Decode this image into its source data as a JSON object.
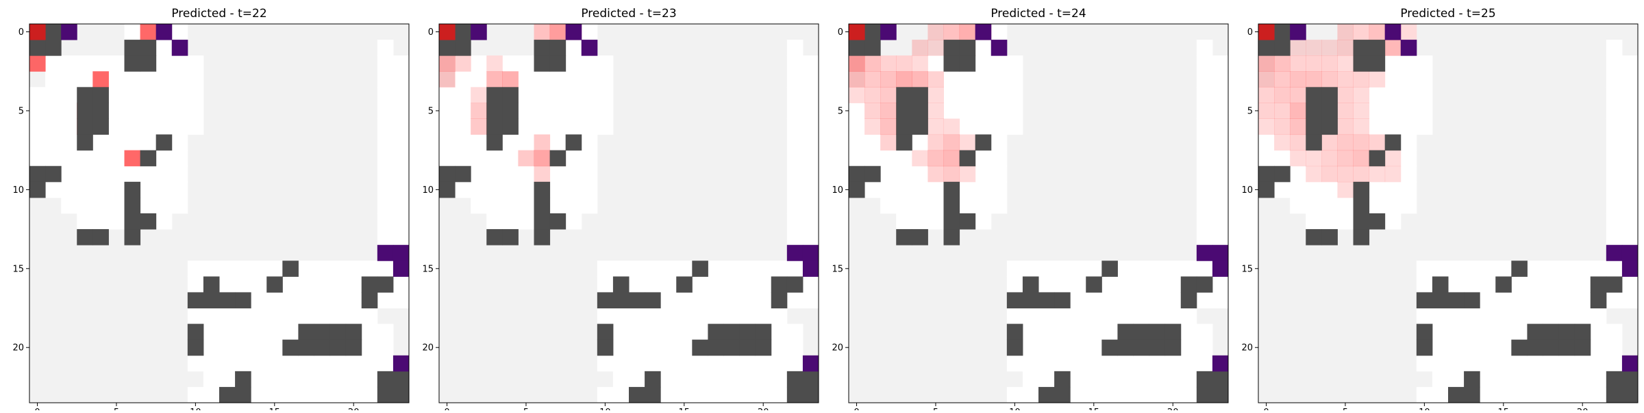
{
  "chart_data": [
    {
      "type": "heatmap",
      "title": "Predicted - t=22",
      "xticks": [
        0,
        5,
        10,
        15,
        20
      ],
      "yticks": [
        0,
        5,
        10,
        15,
        20
      ],
      "grid_size": [
        24,
        24
      ],
      "xlim": [
        -0.5,
        23.5
      ],
      "ylim": [
        23.5,
        -0.5
      ],
      "grid": false
    },
    {
      "type": "heatmap",
      "title": "Predicted - t=23",
      "xticks": [
        0,
        5,
        10,
        15,
        20
      ],
      "yticks": [
        0,
        5,
        10,
        15,
        20
      ],
      "grid_size": [
        24,
        24
      ],
      "xlim": [
        -0.5,
        23.5
      ],
      "ylim": [
        23.5,
        -0.5
      ],
      "grid": false
    },
    {
      "type": "heatmap",
      "title": "Predicted - t=24",
      "xticks": [
        0,
        5,
        10,
        15,
        20
      ],
      "yticks": [
        0,
        5,
        10,
        15,
        20
      ],
      "grid_size": [
        24,
        24
      ],
      "xlim": [
        -0.5,
        23.5
      ],
      "ylim": [
        23.5,
        -0.5
      ],
      "grid": false
    },
    {
      "type": "heatmap",
      "title": "Predicted - t=25",
      "xticks": [
        0,
        5,
        10,
        15,
        20
      ],
      "yticks": [
        0,
        5,
        10,
        15,
        20
      ],
      "grid_size": [
        24,
        24
      ],
      "xlim": [
        -0.5,
        23.5
      ],
      "ylim": [
        23.5,
        -0.5
      ],
      "grid": false
    }
  ],
  "colors": {
    "background": "#f2f2f2",
    "open": "#ffffff",
    "wall": "#4d4d4d",
    "goal": "#4b0a73",
    "agent": "#cc1f1f",
    "prediction": "#ff4d4d"
  },
  "maps": {
    "base": {
      "open": [
        [
          0,
          6,
          9
        ],
        [
          1,
          6,
          8
        ],
        [
          2,
          1,
          10
        ],
        [
          3,
          1,
          10
        ],
        [
          4,
          0,
          10
        ],
        [
          5,
          0,
          10
        ],
        [
          6,
          0,
          10
        ],
        [
          7,
          0,
          9
        ],
        [
          8,
          0,
          9
        ],
        [
          9,
          0,
          9
        ],
        [
          10,
          0,
          9
        ],
        [
          11,
          2,
          9
        ],
        [
          12,
          3,
          8
        ],
        [
          15,
          10,
          23
        ],
        [
          16,
          10,
          23
        ],
        [
          17,
          10,
          23
        ],
        [
          18,
          10,
          21
        ],
        [
          19,
          11,
          22
        ],
        [
          20,
          11,
          22
        ],
        [
          21,
          10,
          22
        ],
        [
          22,
          11,
          22
        ],
        [
          23,
          10,
          22
        ],
        [
          1,
          22,
          22
        ],
        [
          2,
          22,
          23
        ],
        [
          3,
          22,
          23
        ],
        [
          4,
          22,
          23
        ],
        [
          5,
          22,
          23
        ],
        [
          6,
          22,
          23
        ],
        [
          7,
          22,
          23
        ],
        [
          8,
          22,
          23
        ],
        [
          9,
          22,
          23
        ],
        [
          10,
          22,
          23
        ],
        [
          11,
          22,
          23
        ],
        [
          12,
          22,
          23
        ],
        [
          13,
          22,
          23
        ]
      ],
      "walls": [
        [
          0,
          1
        ],
        [
          1,
          0
        ],
        [
          1,
          1
        ],
        [
          2,
          6
        ],
        [
          2,
          7
        ],
        [
          1,
          6
        ],
        [
          1,
          7
        ],
        [
          4,
          3
        ],
        [
          4,
          4
        ],
        [
          5,
          3
        ],
        [
          5,
          4
        ],
        [
          6,
          3
        ],
        [
          6,
          4
        ],
        [
          7,
          3
        ],
        [
          7,
          8
        ],
        [
          8,
          7
        ],
        [
          9,
          0
        ],
        [
          9,
          1
        ],
        [
          10,
          0
        ],
        [
          10,
          6
        ],
        [
          11,
          6
        ],
        [
          12,
          6
        ],
        [
          12,
          7
        ],
        [
          13,
          3
        ],
        [
          13,
          4
        ],
        [
          13,
          6
        ],
        [
          15,
          16
        ],
        [
          16,
          11
        ],
        [
          16,
          15
        ],
        [
          16,
          21
        ],
        [
          16,
          22
        ],
        [
          17,
          10
        ],
        [
          17,
          11
        ],
        [
          17,
          12
        ],
        [
          17,
          13
        ],
        [
          17,
          21
        ],
        [
          19,
          10
        ],
        [
          19,
          17
        ],
        [
          19,
          18
        ],
        [
          19,
          19
        ],
        [
          19,
          20
        ],
        [
          20,
          10
        ],
        [
          20,
          16
        ],
        [
          20,
          17
        ],
        [
          20,
          18
        ],
        [
          20,
          19
        ],
        [
          20,
          20
        ],
        [
          22,
          13
        ],
        [
          23,
          13
        ],
        [
          23,
          12
        ],
        [
          22,
          22
        ],
        [
          22,
          23
        ],
        [
          23,
          22
        ],
        [
          23,
          23
        ]
      ],
      "goals": [
        [
          0,
          2
        ],
        [
          0,
          8
        ],
        [
          1,
          9
        ],
        [
          14,
          22
        ],
        [
          14,
          23
        ],
        [
          15,
          23
        ],
        [
          21,
          23
        ]
      ],
      "agent": [
        [
          0,
          0
        ]
      ]
    },
    "predictions": [
      [
        [
          2,
          0,
          0.85
        ],
        [
          3,
          4,
          0.85
        ],
        [
          5,
          3,
          1.0
        ],
        [
          6,
          3,
          1.0
        ],
        [
          8,
          6,
          0.85
        ],
        [
          0,
          7,
          0.85
        ]
      ],
      [
        [
          0,
          6,
          0.35
        ],
        [
          0,
          7,
          0.55
        ],
        [
          0,
          8,
          0.45
        ],
        [
          2,
          0,
          0.45
        ],
        [
          2,
          1,
          0.25
        ],
        [
          3,
          0,
          0.3
        ],
        [
          3,
          3,
          0.4
        ],
        [
          3,
          4,
          0.45
        ],
        [
          4,
          2,
          0.2
        ],
        [
          5,
          2,
          0.3
        ],
        [
          5,
          3,
          0.85
        ],
        [
          6,
          2,
          0.3
        ],
        [
          6,
          3,
          0.85
        ],
        [
          7,
          6,
          0.3
        ],
        [
          8,
          5,
          0.3
        ],
        [
          8,
          6,
          0.5
        ],
        [
          8,
          7,
          0.25
        ],
        [
          9,
          6,
          0.25
        ],
        [
          2,
          3,
          0.2
        ],
        [
          4,
          4,
          0.1
        ]
      ],
      [
        [
          0,
          5,
          0.25
        ],
        [
          0,
          6,
          0.35
        ],
        [
          0,
          7,
          0.45
        ],
        [
          0,
          8,
          0.45
        ],
        [
          1,
          4,
          0.25
        ],
        [
          1,
          5,
          0.2
        ],
        [
          1,
          7,
          0.25
        ],
        [
          2,
          0,
          0.55
        ],
        [
          2,
          1,
          0.35
        ],
        [
          2,
          2,
          0.25
        ],
        [
          2,
          3,
          0.25
        ],
        [
          2,
          4,
          0.2
        ],
        [
          3,
          0,
          0.35
        ],
        [
          3,
          1,
          0.3
        ],
        [
          3,
          2,
          0.35
        ],
        [
          3,
          3,
          0.45
        ],
        [
          3,
          4,
          0.4
        ],
        [
          3,
          5,
          0.25
        ],
        [
          4,
          0,
          0.2
        ],
        [
          4,
          1,
          0.25
        ],
        [
          4,
          2,
          0.3
        ],
        [
          4,
          5,
          0.2
        ],
        [
          5,
          1,
          0.25
        ],
        [
          5,
          2,
          0.35
        ],
        [
          5,
          3,
          0.75
        ],
        [
          5,
          5,
          0.2
        ],
        [
          6,
          1,
          0.2
        ],
        [
          6,
          2,
          0.35
        ],
        [
          6,
          3,
          0.75
        ],
        [
          6,
          5,
          0.2
        ],
        [
          6,
          6,
          0.2
        ],
        [
          7,
          2,
          0.25
        ],
        [
          7,
          5,
          0.25
        ],
        [
          7,
          6,
          0.35
        ],
        [
          7,
          7,
          0.2
        ],
        [
          8,
          4,
          0.2
        ],
        [
          8,
          5,
          0.35
        ],
        [
          8,
          6,
          0.4
        ],
        [
          8,
          7,
          0.25
        ],
        [
          9,
          5,
          0.25
        ],
        [
          9,
          6,
          0.3
        ],
        [
          9,
          7,
          0.2
        ]
      ],
      [
        [
          0,
          5,
          0.25
        ],
        [
          0,
          6,
          0.25
        ],
        [
          0,
          7,
          0.35
        ],
        [
          0,
          8,
          0.45
        ],
        [
          0,
          9,
          0.2
        ],
        [
          1,
          2,
          0.2
        ],
        [
          1,
          3,
          0.2
        ],
        [
          1,
          4,
          0.2
        ],
        [
          1,
          5,
          0.25
        ],
        [
          1,
          6,
          0.25
        ],
        [
          1,
          7,
          0.25
        ],
        [
          1,
          8,
          0.4
        ],
        [
          2,
          0,
          0.4
        ],
        [
          2,
          1,
          0.35
        ],
        [
          2,
          2,
          0.25
        ],
        [
          2,
          3,
          0.25
        ],
        [
          2,
          4,
          0.25
        ],
        [
          2,
          5,
          0.2
        ],
        [
          2,
          6,
          0.2
        ],
        [
          3,
          0,
          0.3
        ],
        [
          3,
          1,
          0.3
        ],
        [
          3,
          2,
          0.35
        ],
        [
          3,
          3,
          0.35
        ],
        [
          3,
          4,
          0.3
        ],
        [
          3,
          5,
          0.25
        ],
        [
          3,
          6,
          0.25
        ],
        [
          3,
          7,
          0.2
        ],
        [
          4,
          0,
          0.25
        ],
        [
          4,
          1,
          0.3
        ],
        [
          4,
          2,
          0.3
        ],
        [
          4,
          5,
          0.25
        ],
        [
          4,
          6,
          0.2
        ],
        [
          5,
          0,
          0.25
        ],
        [
          5,
          1,
          0.25
        ],
        [
          5,
          2,
          0.4
        ],
        [
          5,
          3,
          0.7
        ],
        [
          5,
          5,
          0.25
        ],
        [
          5,
          6,
          0.2
        ],
        [
          6,
          0,
          0.2
        ],
        [
          6,
          1,
          0.25
        ],
        [
          6,
          2,
          0.35
        ],
        [
          6,
          3,
          0.7
        ],
        [
          6,
          5,
          0.25
        ],
        [
          6,
          6,
          0.2
        ],
        [
          7,
          1,
          0.2
        ],
        [
          7,
          2,
          0.25
        ],
        [
          7,
          4,
          0.25
        ],
        [
          7,
          5,
          0.3
        ],
        [
          7,
          6,
          0.3
        ],
        [
          7,
          7,
          0.25
        ],
        [
          8,
          2,
          0.2
        ],
        [
          8,
          3,
          0.2
        ],
        [
          8,
          4,
          0.25
        ],
        [
          8,
          5,
          0.3
        ],
        [
          8,
          6,
          0.35
        ],
        [
          8,
          7,
          0.25
        ],
        [
          8,
          8,
          0.2
        ],
        [
          9,
          3,
          0.2
        ],
        [
          9,
          4,
          0.25
        ],
        [
          9,
          5,
          0.25
        ],
        [
          9,
          6,
          0.25
        ],
        [
          9,
          7,
          0.2
        ],
        [
          9,
          8,
          0.2
        ],
        [
          10,
          5,
          0.2
        ],
        [
          10,
          6,
          0.2
        ]
      ]
    ]
  }
}
